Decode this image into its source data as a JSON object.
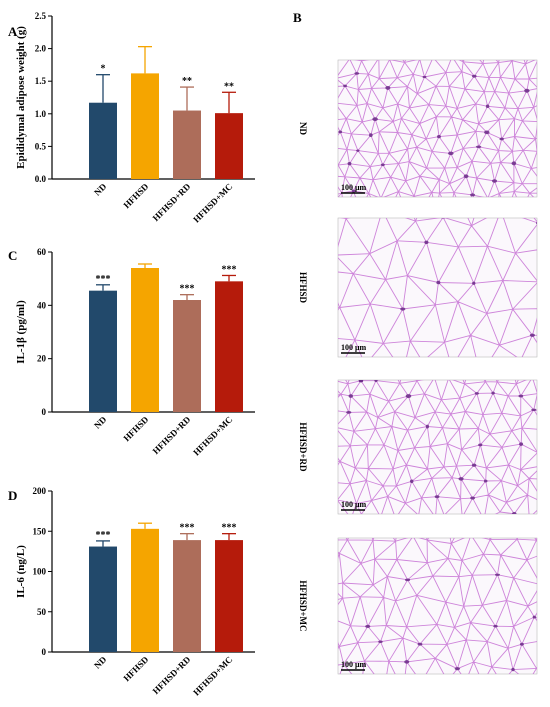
{
  "panels": {
    "A": "A",
    "B": "B",
    "C": "C",
    "D": "D"
  },
  "colors": {
    "ND": "#22496b",
    "HFHSD": "#f5a500",
    "HFHSD+RD": "#ad6d5a",
    "HFHSD+MC": "#b51b0b",
    "tissue_line": "#c978d6",
    "tissue_dot": "#6a2a86"
  },
  "chart_data": [
    {
      "type": "bar",
      "panel": "A",
      "categories": [
        "ND",
        "HFHSD",
        "HFHSD+RD",
        "HFHSD+MC"
      ],
      "values": [
        1.17,
        1.62,
        1.05,
        1.01
      ],
      "errors": [
        0.43,
        0.41,
        0.36,
        0.32
      ],
      "significance": [
        "*",
        "",
        "**",
        "**"
      ],
      "ylabel": "Epididymal adipose weight (g)",
      "ylim": [
        0,
        2.5
      ],
      "yticks": [
        "0.0",
        "0.5",
        "1.0",
        "1.5",
        "2.0",
        "2.5"
      ],
      "grid": false
    },
    {
      "type": "bar",
      "panel": "C",
      "categories": [
        "ND",
        "HFHSD",
        "HFHSD+RD",
        "HFHSD+MC"
      ],
      "values": [
        45.5,
        54.0,
        42.0,
        49.0
      ],
      "errors": [
        2.2,
        1.5,
        2.0,
        2.2
      ],
      "significance": [
        "***",
        "",
        "***",
        "***"
      ],
      "ylabel": "IL-1β (pg/ml)",
      "ylim": [
        0,
        60
      ],
      "yticks": [
        "0",
        "20",
        "40",
        "60"
      ],
      "grid": false
    },
    {
      "type": "bar",
      "panel": "D",
      "categories": [
        "ND",
        "HFHSD",
        "HFHSD+RD",
        "HFHSD+MC"
      ],
      "values": [
        131,
        153,
        139,
        139
      ],
      "errors": [
        7,
        7,
        8,
        8
      ],
      "significance": [
        "***",
        "",
        "***",
        "***"
      ],
      "ylabel": "IL-6 (ng/L)",
      "ylim": [
        0,
        200
      ],
      "yticks": [
        "0",
        "50",
        "100",
        "150",
        "200"
      ],
      "grid": false
    }
  ],
  "histology": {
    "panel": "B",
    "images": [
      {
        "group": "ND",
        "scalebar": "100 μm"
      },
      {
        "group": "HFHSD",
        "scalebar": "100 μm"
      },
      {
        "group": "HFHSD+RD",
        "scalebar": "100 μm"
      },
      {
        "group": "HFHSD+MC",
        "scalebar": "100 μm"
      }
    ]
  }
}
